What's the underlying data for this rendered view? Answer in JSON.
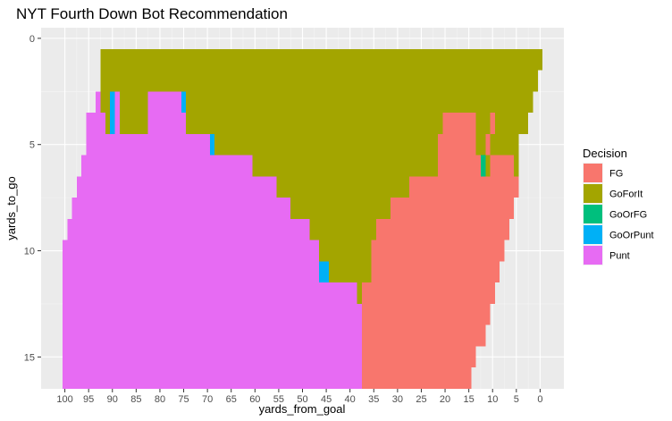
{
  "chart_data": {
    "type": "heatmap",
    "title": "NYT Fourth Down Bot Recommendation",
    "xlabel": "yards_from_goal",
    "ylabel": "yards_to_go",
    "xlim": [
      105,
      -5
    ],
    "ylim": [
      -0.5,
      16.5
    ],
    "x_reversed": true,
    "y_reversed": true,
    "x_ticks": [
      100,
      95,
      90,
      85,
      80,
      75,
      70,
      65,
      60,
      55,
      50,
      45,
      40,
      35,
      30,
      25,
      20,
      15,
      10,
      5,
      0
    ],
    "y_ticks": [
      0,
      5,
      10,
      15
    ],
    "grid": true,
    "legend": {
      "title": "Decision",
      "position": "right",
      "entries": [
        {
          "label": "FG",
          "color": "#F8766D"
        },
        {
          "label": "GoForIt",
          "color": "#A3A500"
        },
        {
          "label": "GoOrFG",
          "color": "#00BF7D"
        },
        {
          "label": "GoOrPunt",
          "color": "#00B0F6"
        },
        {
          "label": "Punt",
          "color": "#E76BF3"
        }
      ]
    },
    "rows": [
      {
        "yards_to_go": 1,
        "segments": [
          {
            "from": 92,
            "to": 0,
            "decision": "GoForIt"
          }
        ]
      },
      {
        "yards_to_go": 2,
        "segments": [
          {
            "from": 92,
            "to": 1,
            "decision": "GoForIt"
          }
        ]
      },
      {
        "yards_to_go": 3,
        "segments": [
          {
            "from": 93,
            "to": 92,
            "decision": "Punt"
          },
          {
            "from": 92,
            "to": 90,
            "decision": "GoForIt"
          },
          {
            "from": 90,
            "to": 89,
            "decision": "GoOrPunt"
          },
          {
            "from": 89,
            "to": 88,
            "decision": "Punt"
          },
          {
            "from": 88,
            "to": 82,
            "decision": "GoForIt"
          },
          {
            "from": 82,
            "to": 75,
            "decision": "Punt"
          },
          {
            "from": 75,
            "to": 74,
            "decision": "GoOrPunt"
          },
          {
            "from": 74,
            "to": 2,
            "decision": "GoForIt"
          }
        ]
      },
      {
        "yards_to_go": 4,
        "segments": [
          {
            "from": 95,
            "to": 91,
            "decision": "Punt"
          },
          {
            "from": 91,
            "to": 90,
            "decision": "GoForIt"
          },
          {
            "from": 90,
            "to": 89,
            "decision": "GoOrPunt"
          },
          {
            "from": 89,
            "to": 88,
            "decision": "Punt"
          },
          {
            "from": 88,
            "to": 82,
            "decision": "GoForIt"
          },
          {
            "from": 82,
            "to": 74,
            "decision": "Punt"
          },
          {
            "from": 74,
            "to": 20,
            "decision": "GoForIt"
          },
          {
            "from": 20,
            "to": 13,
            "decision": "FG"
          },
          {
            "from": 13,
            "to": 10,
            "decision": "GoForIt"
          },
          {
            "from": 10,
            "to": 9,
            "decision": "FG"
          },
          {
            "from": 9,
            "to": 3,
            "decision": "GoForIt"
          }
        ]
      },
      {
        "yards_to_go": 5,
        "segments": [
          {
            "from": 95,
            "to": 69,
            "decision": "Punt"
          },
          {
            "from": 69,
            "to": 68,
            "decision": "GoOrPunt"
          },
          {
            "from": 68,
            "to": 21,
            "decision": "GoForIt"
          },
          {
            "from": 21,
            "to": 13,
            "decision": "FG"
          },
          {
            "from": 13,
            "to": 11,
            "decision": "GoForIt"
          },
          {
            "from": 11,
            "to": 10,
            "decision": "FG"
          },
          {
            "from": 10,
            "to": 5,
            "decision": "GoForIt"
          }
        ]
      },
      {
        "yards_to_go": 6,
        "segments": [
          {
            "from": 96,
            "to": 60,
            "decision": "Punt"
          },
          {
            "from": 60,
            "to": 21,
            "decision": "GoForIt"
          },
          {
            "from": 21,
            "to": 12,
            "decision": "FG"
          },
          {
            "from": 12,
            "to": 11,
            "decision": "GoOrFG"
          },
          {
            "from": 11,
            "to": 10,
            "decision": "GoForIt"
          },
          {
            "from": 10,
            "to": 5,
            "decision": "FG"
          },
          {
            "from": 5,
            "to": 5,
            "decision": "GoForIt"
          }
        ]
      },
      {
        "yards_to_go": 7,
        "segments": [
          {
            "from": 97,
            "to": 55,
            "decision": "Punt"
          },
          {
            "from": 55,
            "to": 27,
            "decision": "GoForIt"
          },
          {
            "from": 27,
            "to": 5,
            "decision": "FG"
          }
        ]
      },
      {
        "yards_to_go": 8,
        "segments": [
          {
            "from": 98,
            "to": 52,
            "decision": "Punt"
          },
          {
            "from": 52,
            "to": 31,
            "decision": "GoForIt"
          },
          {
            "from": 31,
            "to": 6,
            "decision": "FG"
          }
        ]
      },
      {
        "yards_to_go": 9,
        "segments": [
          {
            "from": 99,
            "to": 48,
            "decision": "Punt"
          },
          {
            "from": 48,
            "to": 34,
            "decision": "GoForIt"
          },
          {
            "from": 34,
            "to": 7,
            "decision": "FG"
          }
        ]
      },
      {
        "yards_to_go": 10,
        "segments": [
          {
            "from": 100,
            "to": 46,
            "decision": "Punt"
          },
          {
            "from": 46,
            "to": 35,
            "decision": "GoForIt"
          },
          {
            "from": 35,
            "to": 8,
            "decision": "FG"
          }
        ]
      },
      {
        "yards_to_go": 11,
        "segments": [
          {
            "from": 100,
            "to": 46,
            "decision": "Punt"
          },
          {
            "from": 46,
            "to": 44,
            "decision": "GoOrPunt"
          },
          {
            "from": 44,
            "to": 35,
            "decision": "GoForIt"
          },
          {
            "from": 35,
            "to": 9,
            "decision": "FG"
          }
        ]
      },
      {
        "yards_to_go": 12,
        "segments": [
          {
            "from": 100,
            "to": 38,
            "decision": "Punt"
          },
          {
            "from": 38,
            "to": 37,
            "decision": "GoForIt"
          },
          {
            "from": 37,
            "to": 10,
            "decision": "FG"
          }
        ]
      },
      {
        "yards_to_go": 13,
        "segments": [
          {
            "from": 100,
            "to": 37,
            "decision": "Punt"
          },
          {
            "from": 37,
            "to": 11,
            "decision": "FG"
          }
        ]
      },
      {
        "yards_to_go": 14,
        "segments": [
          {
            "from": 100,
            "to": 37,
            "decision": "Punt"
          },
          {
            "from": 37,
            "to": 12,
            "decision": "FG"
          }
        ]
      },
      {
        "yards_to_go": 15,
        "segments": [
          {
            "from": 100,
            "to": 37,
            "decision": "Punt"
          },
          {
            "from": 37,
            "to": 14,
            "decision": "FG"
          }
        ]
      },
      {
        "yards_to_go": 16,
        "segments": [
          {
            "from": 100,
            "to": 37,
            "decision": "Punt"
          },
          {
            "from": 37,
            "to": 15,
            "decision": "FG"
          }
        ]
      }
    ]
  }
}
